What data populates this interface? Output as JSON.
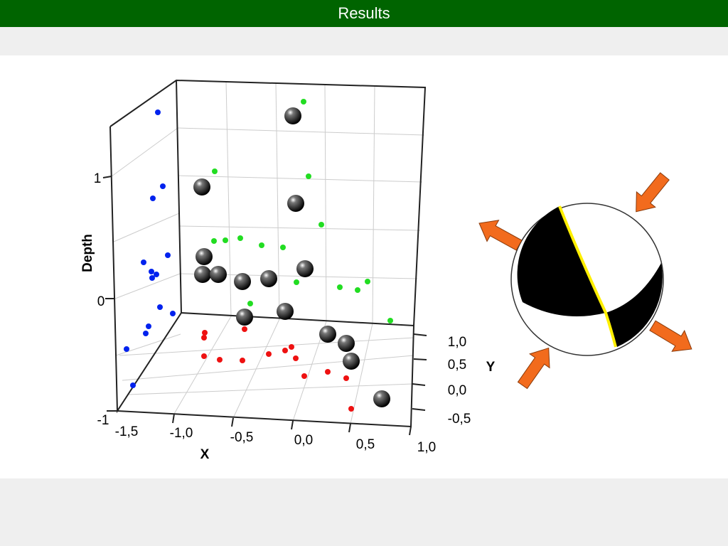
{
  "header": {
    "title": "Results"
  },
  "plot": {
    "axis_labels": {
      "depth": "Depth",
      "x": "X",
      "y": "Y"
    },
    "depth_ticks": [
      "1",
      "0",
      "-1"
    ],
    "x_ticks": [
      "-1,5",
      "-1,0",
      "-0,5",
      "0,0",
      "0,5",
      "1,0"
    ],
    "y_ticks": [
      "1,0",
      "0,5",
      "0,0",
      "-0,5"
    ]
  }
}
